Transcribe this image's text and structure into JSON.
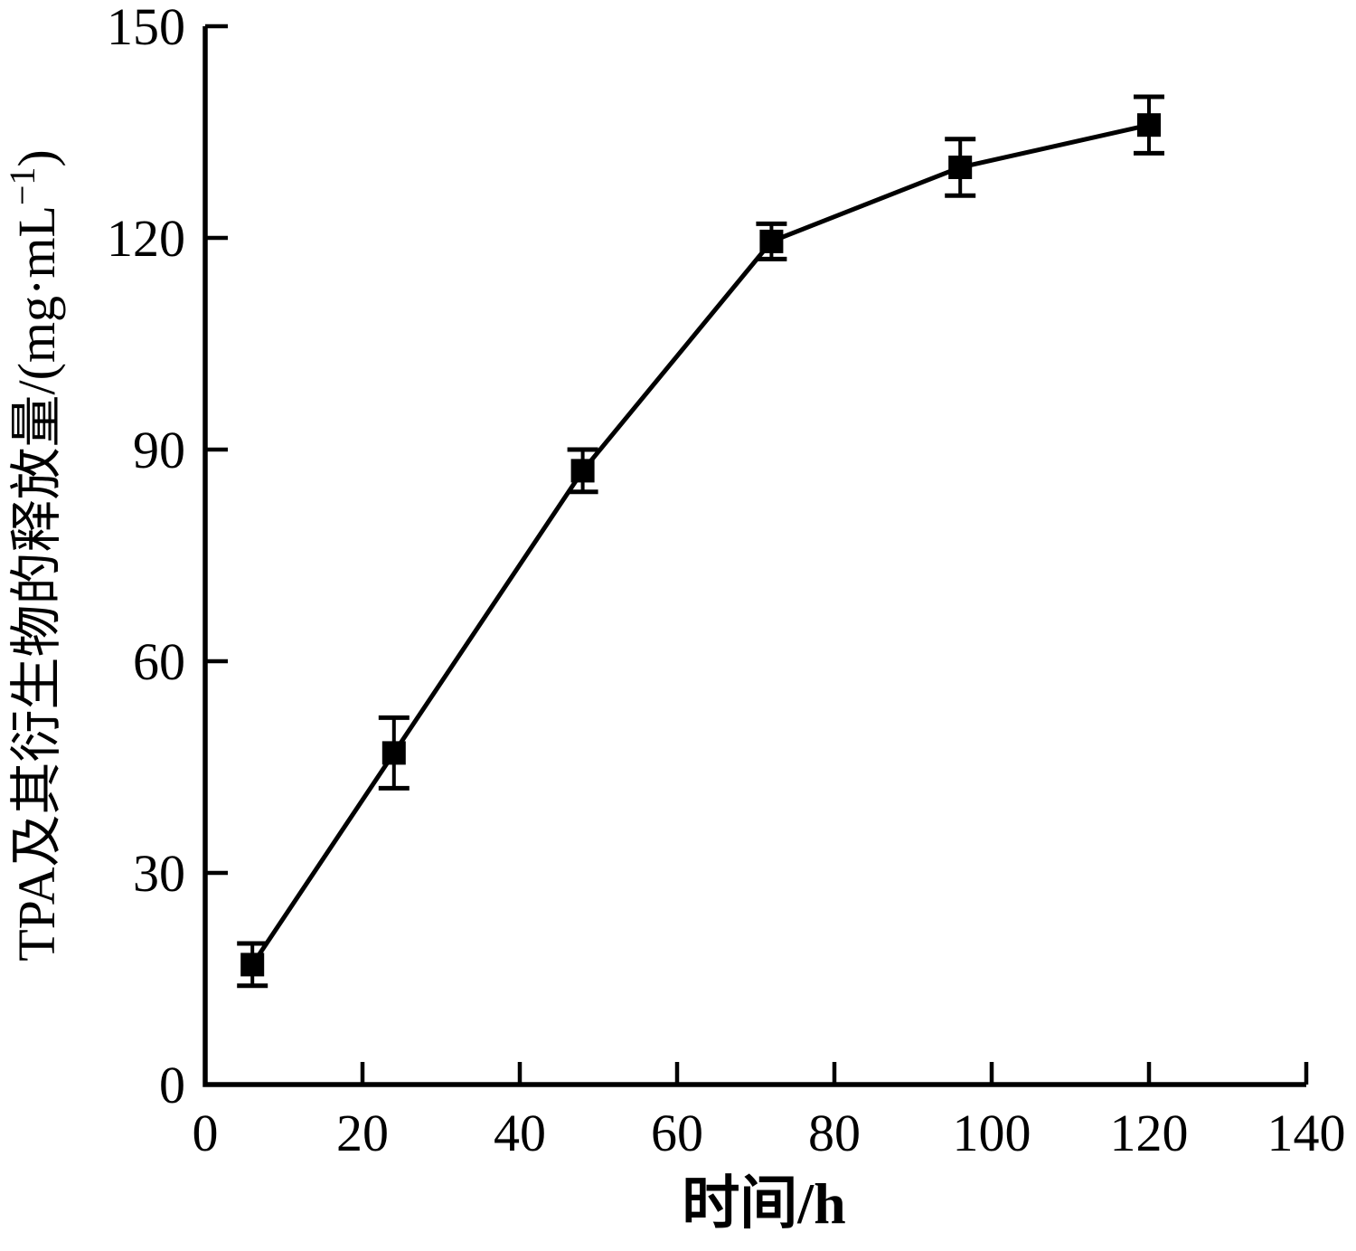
{
  "figure": {
    "background": "#ffffff"
  },
  "chart_data": {
    "type": "line",
    "title": "",
    "xlabel": "时间/h",
    "ylabel": "TPA及其衍生物的释放量/(mg·mL⁻¹)",
    "ylabel_parts": {
      "base": "TPA及其衍生物的释放量/(mg·mL",
      "superscript": "−1",
      "close": ")"
    },
    "x": [
      6,
      24,
      48,
      72,
      96,
      120
    ],
    "series": [
      {
        "name": "TPA及其衍生物的释放量",
        "values": [
          17,
          47,
          87,
          119.5,
          130,
          136
        ],
        "errors": [
          3,
          5,
          3,
          2.5,
          4,
          4
        ],
        "marker": "filled-square",
        "color": "#000000"
      }
    ],
    "xlim": [
      0,
      140
    ],
    "ylim": [
      0,
      150
    ],
    "x_ticks": [
      0,
      20,
      40,
      60,
      80,
      100,
      120,
      140
    ],
    "y_ticks": [
      0,
      30,
      60,
      90,
      120,
      150
    ],
    "grid": false,
    "legend": "none",
    "axis_color": "#000000",
    "line_color": "#000000",
    "marker_color": "#000000"
  }
}
